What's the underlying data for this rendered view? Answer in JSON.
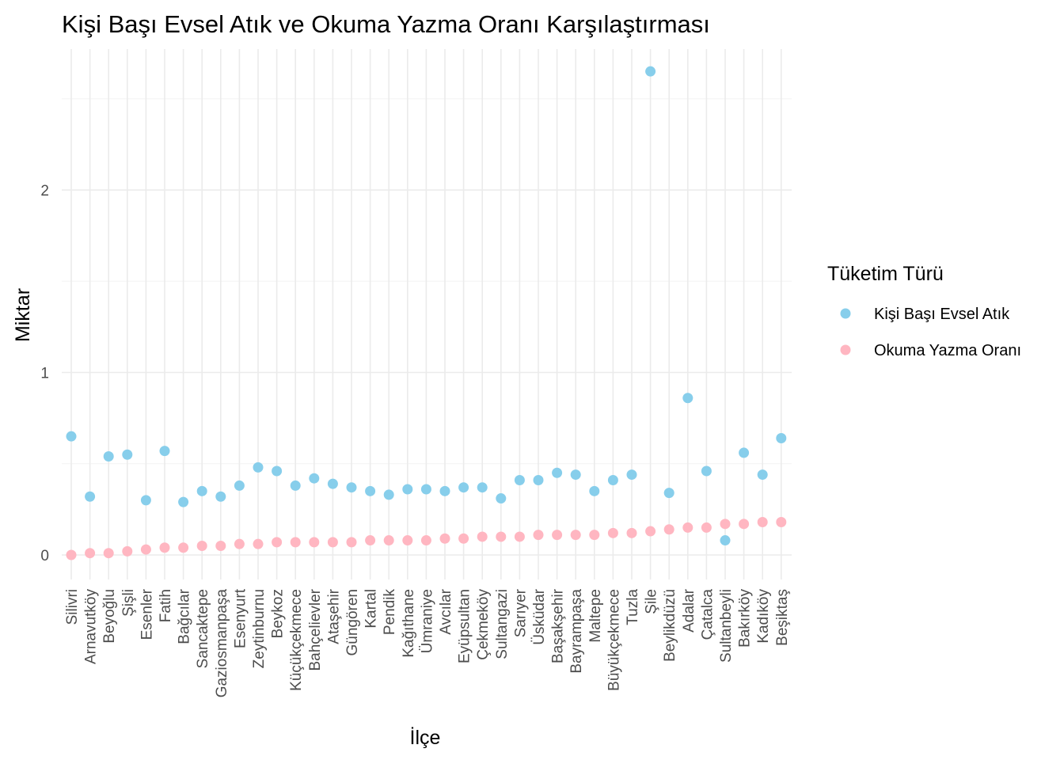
{
  "chart_data": {
    "type": "scatter",
    "title": "Kişi Başı Evsel Atık ve Okuma Yazma Oranı Karşılaştırması",
    "xlabel": "İlçe",
    "ylabel": "Miktar",
    "ylim": [
      -0.12,
      2.78
    ],
    "yticks": [
      0,
      1,
      2
    ],
    "grid": true,
    "legend_position": "right",
    "legend_title": "Tüketim Türü",
    "categories": [
      "Silivri",
      "Arnavutköy",
      "Beyoğlu",
      "Şişli",
      "Esenler",
      "Fatih",
      "Bağcılar",
      "Sancaktepe",
      "Gaziosmanpaşa",
      "Esenyurt",
      "Zeytinburnu",
      "Beykoz",
      "Küçükçekmece",
      "Bahçelievler",
      "Ataşehir",
      "Güngören",
      "Kartal",
      "Pendik",
      "Kağıthane",
      "Ümraniye",
      "Avcılar",
      "Eyüpsultan",
      "Çekmeköy",
      "Sultangazi",
      "Sarıyer",
      "Üsküdar",
      "Başakşehir",
      "Bayrampaşa",
      "Maltepe",
      "Büyükçekmece",
      "Tuzla",
      "Şile",
      "Beylikdüzü",
      "Adalar",
      "Çatalca",
      "Sultanbeyli",
      "Bakırköy",
      "Kadıköy",
      "Beşiktaş"
    ],
    "series": [
      {
        "name": "Kişi Başı Evsel Atık",
        "color": "#87CEEB",
        "values": [
          0.65,
          0.32,
          0.54,
          0.55,
          0.3,
          0.57,
          0.29,
          0.35,
          0.32,
          0.38,
          0.48,
          0.46,
          0.38,
          0.42,
          0.39,
          0.37,
          0.35,
          0.33,
          0.36,
          0.36,
          0.35,
          0.37,
          0.37,
          0.31,
          0.41,
          0.41,
          0.45,
          0.44,
          0.35,
          0.41,
          0.44,
          2.65,
          0.34,
          0.86,
          0.46,
          0.08,
          0.56,
          0.44,
          0.64
        ]
      },
      {
        "name": "Okuma Yazma Oranı",
        "color": "#FFB6C1",
        "values": [
          0.0,
          0.01,
          0.01,
          0.02,
          0.03,
          0.04,
          0.04,
          0.05,
          0.05,
          0.06,
          0.06,
          0.07,
          0.07,
          0.07,
          0.07,
          0.07,
          0.08,
          0.08,
          0.08,
          0.08,
          0.09,
          0.09,
          0.1,
          0.1,
          0.1,
          0.11,
          0.11,
          0.11,
          0.11,
          0.12,
          0.12,
          0.13,
          0.14,
          0.15,
          0.15,
          0.17,
          0.17,
          0.18,
          0.18
        ]
      }
    ]
  }
}
